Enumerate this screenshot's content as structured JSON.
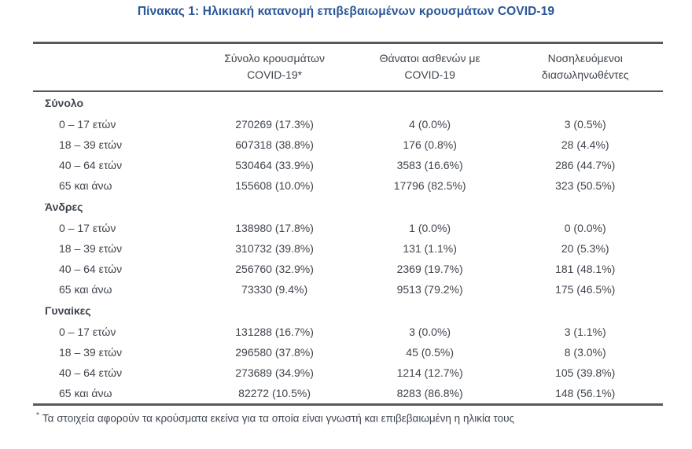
{
  "title": "Πίνακας 1: Ηλικιακή κατανομή επιβεβαιωμένων κρουσμάτων COVID-19",
  "colors": {
    "title_color": "#2b5797",
    "text_color": "#3f454d",
    "rule_color": "#595959"
  },
  "table": {
    "columns": [
      {
        "line1": "Σύνολο κρουσμάτων",
        "line2": "COVID-19*"
      },
      {
        "line1": "Θάνατοι ασθενών με",
        "line2": "COVID-19"
      },
      {
        "line1": "Νοσηλευόμενοι",
        "line2": "διασωληνωθέντες"
      }
    ],
    "sections": [
      {
        "label": "Σύνολο",
        "rows": [
          {
            "label": "0 – 17 ετών",
            "cases": "270269 (17.3%)",
            "deaths": "4 (0.0%)",
            "intubated": "3 (0.5%)"
          },
          {
            "label": "18 – 39 ετών",
            "cases": "607318 (38.8%)",
            "deaths": "176 (0.8%)",
            "intubated": "28 (4.4%)"
          },
          {
            "label": "40 – 64 ετών",
            "cases": "530464 (33.9%)",
            "deaths": "3583 (16.6%)",
            "intubated": "286 (44.7%)"
          },
          {
            "label": "65 και άνω",
            "cases": "155608 (10.0%)",
            "deaths": "17796 (82.5%)",
            "intubated": "323 (50.5%)"
          }
        ]
      },
      {
        "label": "Άνδρες",
        "rows": [
          {
            "label": "0 – 17 ετών",
            "cases": "138980 (17.8%)",
            "deaths": "1 (0.0%)",
            "intubated": "0 (0.0%)"
          },
          {
            "label": "18 – 39 ετών",
            "cases": "310732 (39.8%)",
            "deaths": "131 (1.1%)",
            "intubated": "20 (5.3%)"
          },
          {
            "label": "40 – 64 ετών",
            "cases": "256760 (32.9%)",
            "deaths": "2369 (19.7%)",
            "intubated": "181 (48.1%)"
          },
          {
            "label": "65 και άνω",
            "cases": "73330 (9.4%)",
            "deaths": "9513 (79.2%)",
            "intubated": "175 (46.5%)"
          }
        ]
      },
      {
        "label": "Γυναίκες",
        "rows": [
          {
            "label": "0 – 17 ετών",
            "cases": "131288 (16.7%)",
            "deaths": "3 (0.0%)",
            "intubated": "3 (1.1%)"
          },
          {
            "label": "18 – 39 ετών",
            "cases": "296580 (37.8%)",
            "deaths": "45 (0.5%)",
            "intubated": "8 (3.0%)"
          },
          {
            "label": "40 – 64 ετών",
            "cases": "273689 (34.9%)",
            "deaths": "1214 (12.7%)",
            "intubated": "105 (39.8%)"
          },
          {
            "label": "65 και άνω",
            "cases": "82272 (10.5%)",
            "deaths": "8283 (86.8%)",
            "intubated": "148 (56.1%)"
          }
        ]
      }
    ],
    "footnote_marker": "*",
    "footnote": "Τα στοιχεία αφορούν τα κρούσματα εκείνα για τα οποία είναι γνωστή και επιβεβαιωμένη η ηλικία τους"
  }
}
